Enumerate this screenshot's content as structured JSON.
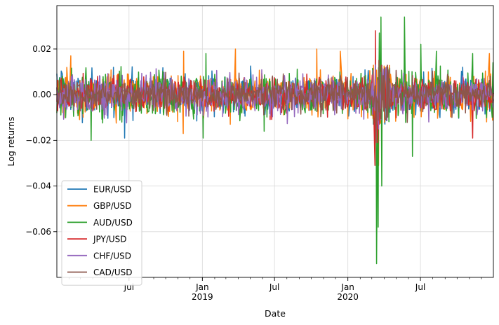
{
  "chart_data": {
    "type": "line",
    "title": "",
    "xlabel": "Date",
    "ylabel": "Log returns",
    "x_range": [
      "2018-01-01",
      "2020-12-31"
    ],
    "ylim": [
      -0.08,
      0.039
    ],
    "grid": true,
    "legend_placement": "lower-left",
    "x_ticks": [
      {
        "date": "2018-07-01",
        "label": "Jul",
        "sublabel": ""
      },
      {
        "date": "2019-01-01",
        "label": "Jan",
        "sublabel": "2019"
      },
      {
        "date": "2019-07-01",
        "label": "Jul",
        "sublabel": ""
      },
      {
        "date": "2020-01-01",
        "label": "Jan",
        "sublabel": "2020"
      },
      {
        "date": "2020-07-01",
        "label": "Jul",
        "sublabel": ""
      }
    ],
    "y_ticks": [
      {
        "value": 0.02,
        "label": "0.02"
      },
      {
        "value": 0.0,
        "label": "0.00"
      },
      {
        "value": -0.02,
        "label": "−0.02"
      },
      {
        "value": -0.04,
        "label": "−0.04"
      },
      {
        "value": -0.06,
        "label": "−0.06"
      }
    ],
    "series": [
      {
        "name": "EUR/USD",
        "color": "#1f77b4",
        "noise_scale": 0.004,
        "spikes": [
          [
            "2018-06-20",
            -0.019
          ],
          [
            "2020-10-15",
            0.012
          ],
          [
            "2020-03-20",
            0.015
          ]
        ]
      },
      {
        "name": "GBP/USD",
        "color": "#ff7f0e",
        "noise_scale": 0.0045,
        "spikes": [
          [
            "2018-02-05",
            0.017
          ],
          [
            "2018-11-15",
            0.019
          ],
          [
            "2018-11-14",
            -0.017
          ],
          [
            "2019-03-25",
            0.02
          ],
          [
            "2019-03-12",
            -0.013
          ],
          [
            "2019-10-15",
            0.02
          ],
          [
            "2019-12-13",
            0.019
          ],
          [
            "2020-03-18",
            -0.031
          ],
          [
            "2020-03-19",
            0.015
          ],
          [
            "2020-12-20",
            0.018
          ]
        ]
      },
      {
        "name": "AUD/USD",
        "color": "#2ca02c",
        "noise_scale": 0.0045,
        "spikes": [
          [
            "2018-03-28",
            -0.02
          ],
          [
            "2019-01-03",
            -0.019
          ],
          [
            "2019-01-10",
            0.018
          ],
          [
            "2019-06-05",
            -0.016
          ],
          [
            "2020-03-13",
            -0.074
          ],
          [
            "2020-03-17",
            -0.058
          ],
          [
            "2020-03-20",
            0.027
          ],
          [
            "2020-03-24",
            0.034
          ],
          [
            "2020-03-26",
            -0.04
          ],
          [
            "2020-05-22",
            0.034
          ],
          [
            "2020-06-11",
            -0.027
          ],
          [
            "2020-07-02",
            0.022
          ],
          [
            "2020-08-10",
            0.019
          ],
          [
            "2020-11-09",
            0.018
          ],
          [
            "2020-12-30",
            0.014
          ]
        ]
      },
      {
        "name": "JPY/USD",
        "color": "#d62728",
        "noise_scale": 0.0035,
        "spikes": [
          [
            "2020-03-09",
            -0.031
          ],
          [
            "2020-03-10",
            0.028
          ],
          [
            "2020-03-16",
            -0.021
          ],
          [
            "2020-11-09",
            -0.019
          ]
        ]
      },
      {
        "name": "CHF/USD",
        "color": "#9467bd",
        "noise_scale": 0.004,
        "spikes": [
          [
            "2020-03-10",
            0.013
          ],
          [
            "2020-03-18",
            -0.015
          ]
        ]
      },
      {
        "name": "CAD/USD",
        "color": "#8c564b",
        "noise_scale": 0.0035,
        "spikes": [
          [
            "2020-03-12",
            -0.021
          ],
          [
            "2020-03-19",
            0.015
          ]
        ]
      }
    ]
  }
}
